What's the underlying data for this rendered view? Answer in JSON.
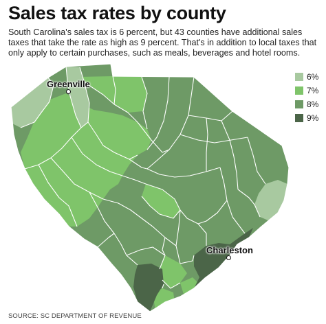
{
  "title": "Sales tax rates by county",
  "subtitle": "South Carolina's sales tax is 6 percent, but 43 counties have additional sales taxes that take the rate as high as 9 percent. That's in addition to local taxes that only apply to certain purchases, such as meals, beverages and hotel rooms.",
  "legend": [
    {
      "label": "6%",
      "color": "#a8c9a0"
    },
    {
      "label": "7%",
      "color": "#7fc46a"
    },
    {
      "label": "8%",
      "color": "#6e9a66"
    },
    {
      "label": "9%",
      "color": "#4b6548"
    }
  ],
  "cities": {
    "greenville": "Greenville",
    "charleston": "Charleston"
  },
  "source": "SOURCE: SC DEPARTMENT OF REVENUE"
}
